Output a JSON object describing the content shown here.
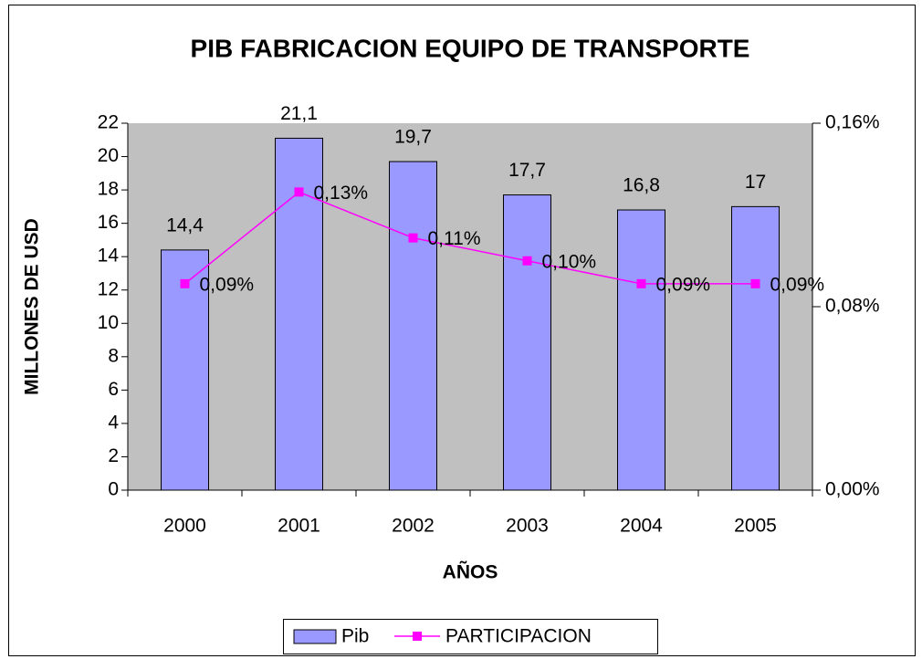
{
  "chart_data": {
    "type": "bar_line",
    "title": "PIB FABRICACION EQUIPO DE TRANSPORTE",
    "x_label": "AÑOS",
    "y_label": "MILLONES DE USD",
    "categories": [
      "2000",
      "2001",
      "2002",
      "2003",
      "2004",
      "2005"
    ],
    "series": [
      {
        "name": "Pib",
        "type": "bar",
        "color": "#9999ff",
        "values": [
          14.4,
          21.1,
          19.7,
          17.7,
          16.8,
          17
        ],
        "value_labels": [
          "14,4",
          "21,1",
          "19,7",
          "17,7",
          "16,8",
          "17"
        ]
      },
      {
        "name": "PARTICIPACION",
        "type": "line",
        "axis": "y2",
        "color": "#ff00ff",
        "values": [
          0.09,
          0.13,
          0.11,
          0.1,
          0.09,
          0.09
        ],
        "value_labels": [
          "0,09%",
          "0,13%",
          "0,11%",
          "0,10%",
          "0,09%",
          "0,09%"
        ]
      }
    ],
    "ylim": [
      0,
      22
    ],
    "yticks": [
      0,
      2,
      4,
      6,
      8,
      10,
      12,
      14,
      16,
      18,
      20,
      22
    ],
    "y2lim": [
      0,
      0.16
    ],
    "y2ticks": [
      {
        "value": 0,
        "label": "0,00%"
      },
      {
        "value": 0.08,
        "label": "0,08%"
      },
      {
        "value": 0.16,
        "label": "0,16%"
      }
    ],
    "legend": "bottom",
    "plot_background": "#c0c0c0"
  }
}
